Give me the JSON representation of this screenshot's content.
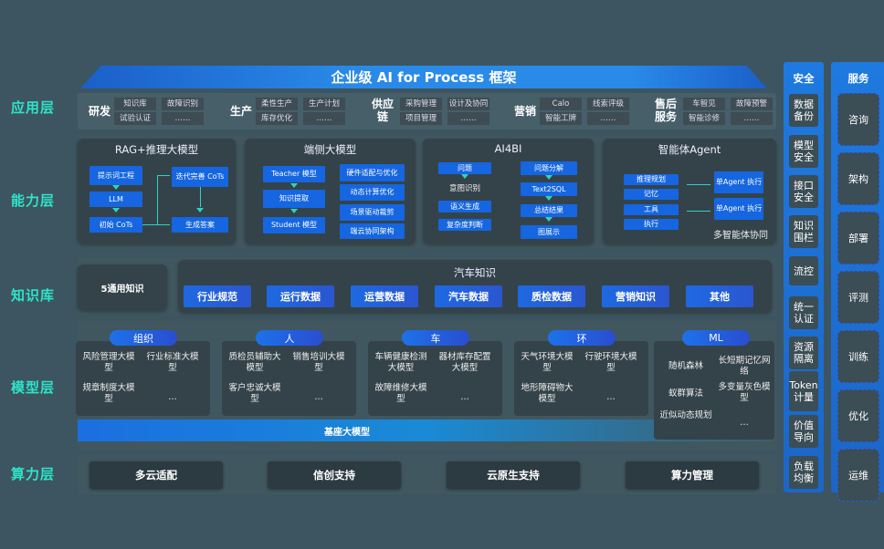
{
  "title": "企业级 AI for Process 框架",
  "layers": [
    "应用层",
    "能力层",
    "知识库",
    "模型层",
    "算力层"
  ],
  "app": {
    "groups": [
      {
        "name": "研发",
        "items": [
          "知识库",
          "故障识别",
          "试验认证",
          "……"
        ]
      },
      {
        "name": "生产",
        "items": [
          "柔性生产",
          "生产计划",
          "库存优化",
          "……"
        ]
      },
      {
        "name": "供应链",
        "items": [
          "采购管理",
          "设计及协同",
          "项目管理",
          "……"
        ]
      },
      {
        "name": "营销",
        "items": [
          "Calo",
          "线索评级",
          "智能工牌",
          "……"
        ]
      },
      {
        "name": "售后服务",
        "items": [
          "车智见",
          "故障预警",
          "智能诊修",
          "……"
        ]
      }
    ]
  },
  "capability": {
    "rag": {
      "title": "RAG+推理大模型",
      "items": [
        "提示词工程",
        "LLM",
        "初始 CoTs",
        "迭代完善 CoTs",
        "生成答案"
      ]
    },
    "edge": {
      "title": "端侧大模型",
      "items": [
        "Teacher 模型",
        "知识提取",
        "Student 模型",
        "硬件适配与优化",
        "动态计算优化",
        "场景驱动裁剪",
        "端云协同架构"
      ]
    },
    "ai4bi": {
      "title": "AI4BI",
      "items": [
        "问题",
        "意图识别",
        "语义生成",
        "复杂度判断",
        "问题分解",
        "Text2SQL",
        "总结结果",
        "图展示"
      ]
    },
    "agent": {
      "title": "智能体Agent",
      "items": [
        "推理规划",
        "记忆",
        "工具",
        "执行",
        "单Agent 执行",
        "单Agent 执行",
        "多智能体协同"
      ]
    }
  },
  "knowledge": {
    "general": "5通用知识",
    "auto_title": "汽车知识",
    "items": [
      "行业规范",
      "运行数据",
      "运营数据",
      "汽车数据",
      "质检数据",
      "营销知识",
      "其他"
    ]
  },
  "model": {
    "groups": [
      {
        "name": "组织",
        "items": [
          "风险管理大模型",
          "行业标准大模型",
          "规章制度大模型",
          "…"
        ]
      },
      {
        "name": "人",
        "items": [
          "质检员辅助大模型",
          "销售培训大模型",
          "客户忠诚大模型",
          "…"
        ]
      },
      {
        "name": "车",
        "items": [
          "车辆健康检测大模型",
          "器材库存配置大模型",
          "故障维修大模型",
          "…"
        ]
      },
      {
        "name": "环",
        "items": [
          "天气环境大模型",
          "行驶环境大模型",
          "地形障碍物大模型",
          "…"
        ]
      },
      {
        "name": "ML",
        "items": [
          "随机森林",
          "长短期记忆网络",
          "蚁群算法",
          "多变量灰色模型",
          "近似动态规划",
          "…"
        ]
      }
    ],
    "base": "基座大模型"
  },
  "compute": [
    "多云适配",
    "信创支持",
    "云原生支持",
    "算力管理"
  ],
  "security": {
    "title": "安全",
    "items": [
      "数据备份",
      "模型安全",
      "接口安全",
      "知识围栏",
      "流控",
      "统一认证",
      "资源隔离",
      "Token计量",
      "价值导向",
      "负载均衡"
    ]
  },
  "services": {
    "title": "服务",
    "items": [
      "咨询",
      "架构",
      "部署",
      "评测",
      "训练",
      "优化",
      "运维"
    ]
  },
  "colors": {
    "background": "#3c5560",
    "accent": "#1566e0",
    "layer_label": "#2fe3c9"
  }
}
